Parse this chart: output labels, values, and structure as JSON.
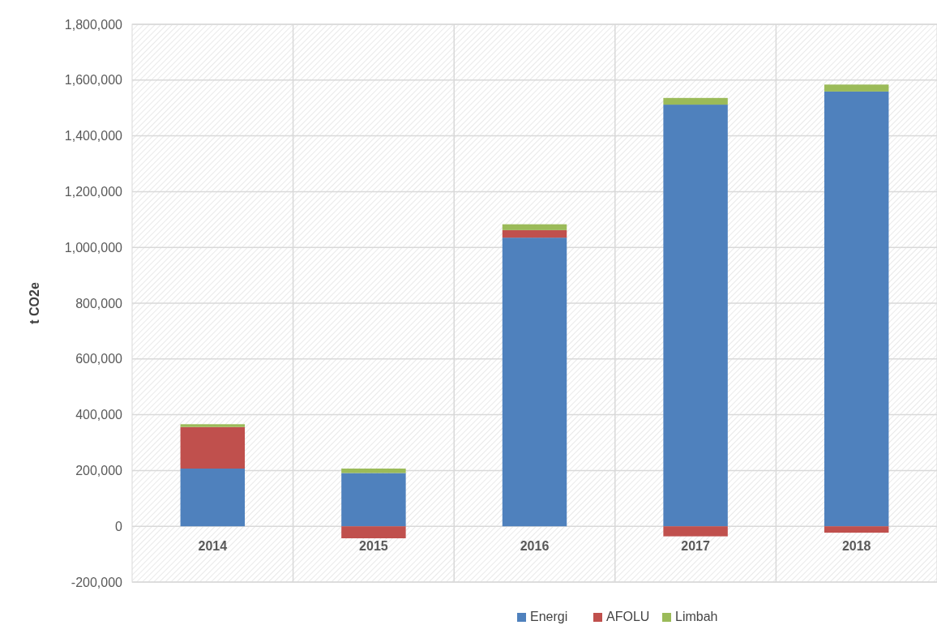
{
  "chart_data": {
    "type": "bar",
    "stacked": true,
    "ylabel": "t CO2e",
    "categories": [
      "2014",
      "2015",
      "2016",
      "2017",
      "2018"
    ],
    "series": [
      {
        "name": "Energi",
        "color": "#4f81bd",
        "values": [
          207000,
          191000,
          1035000,
          1512000,
          1559000
        ]
      },
      {
        "name": "AFOLU",
        "color": "#c0504d",
        "values": [
          149000,
          -43000,
          27000,
          -36000,
          -23000
        ]
      },
      {
        "name": "Limbah",
        "color": "#9bbb59",
        "values": [
          10000,
          16000,
          21000,
          24000,
          25000
        ]
      }
    ],
    "ylim": [
      -200000,
      1800000
    ],
    "yticks": [
      {
        "value": -200000,
        "label": "-200,000"
      },
      {
        "value": 0,
        "label": "0"
      },
      {
        "value": 200000,
        "label": "200,000"
      },
      {
        "value": 400000,
        "label": "400,000"
      },
      {
        "value": 600000,
        "label": "600,000"
      },
      {
        "value": 800000,
        "label": "800,000"
      },
      {
        "value": 1000000,
        "label": "1,000,000"
      },
      {
        "value": 1200000,
        "label": "1,200,000"
      },
      {
        "value": 1400000,
        "label": "1,400,000"
      },
      {
        "value": 1600000,
        "label": "1,600,000"
      },
      {
        "value": 1800000,
        "label": "1,800,000"
      }
    ],
    "grid": true,
    "legend": "bottom"
  }
}
